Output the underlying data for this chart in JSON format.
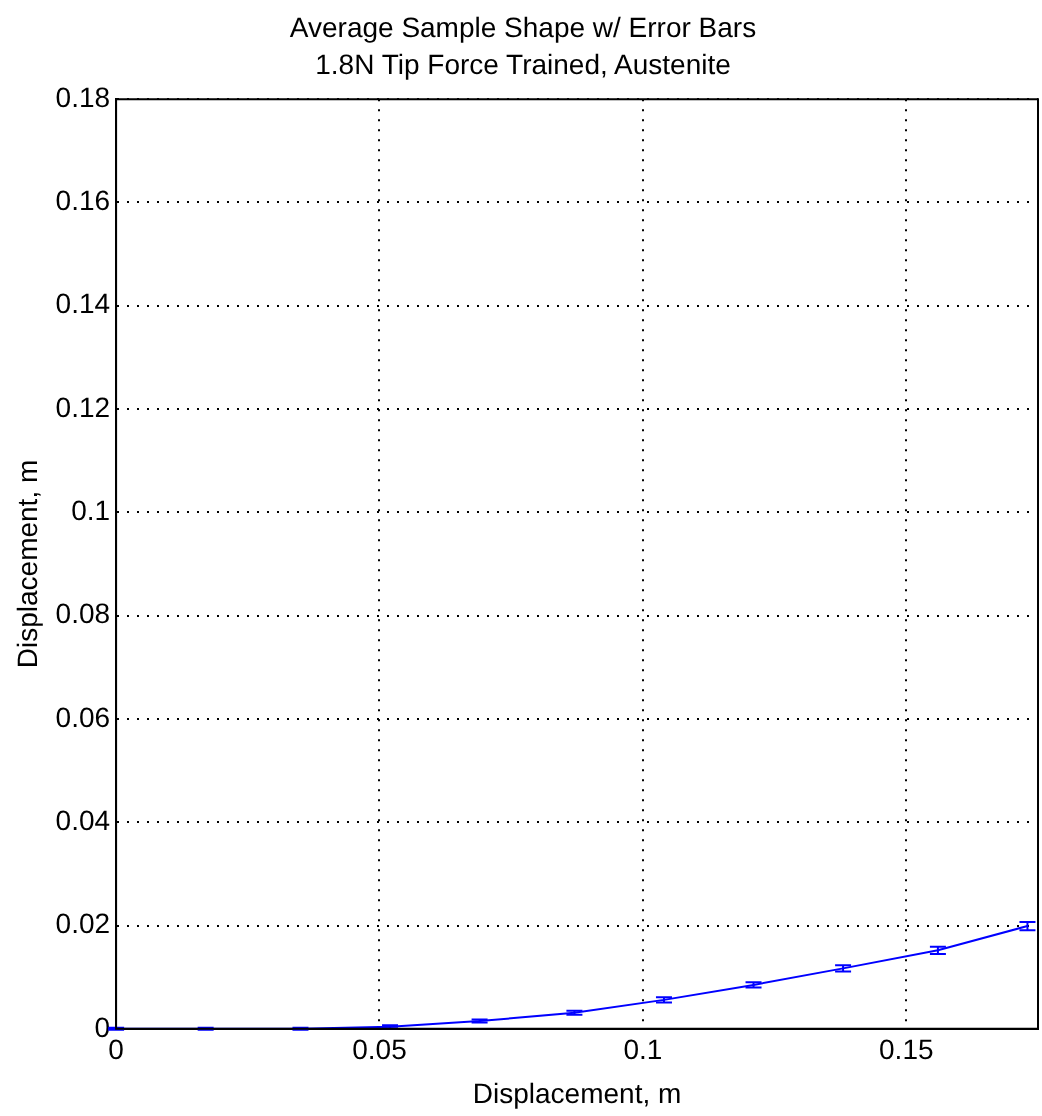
{
  "chart_data": {
    "type": "line",
    "title": "Average Sample Shape w/ Error Bars",
    "subtitle": "1.8N Tip Force Trained, Austenite",
    "xlabel": "Displacement, m",
    "ylabel": "Displacement, m",
    "x": [
      0,
      0.017,
      0.035,
      0.052,
      0.069,
      0.087,
      0.104,
      0.121,
      0.138,
      0.156,
      0.173
    ],
    "series": [
      {
        "color": "#0000ff",
        "values": [
          0,
          0,
          0,
          0.0004,
          0.0015,
          0.0031,
          0.0056,
          0.0085,
          0.0117,
          0.0152,
          0.0199
        ],
        "errors": [
          0.0002,
          0.0002,
          0.0002,
          0.0003,
          0.0003,
          0.0004,
          0.0005,
          0.0005,
          0.0006,
          0.0007,
          0.0008
        ]
      }
    ],
    "xlim": [
      0,
      0.175
    ],
    "xticks": [
      0,
      0.05,
      0.1,
      0.15
    ],
    "ylim": [
      0,
      0.18
    ],
    "yticks": [
      0,
      0.02,
      0.04,
      0.06,
      0.08,
      0.1,
      0.12,
      0.14,
      0.16,
      0.18
    ],
    "grid": true,
    "legend": false,
    "marker": "none",
    "line_style": "solid"
  }
}
